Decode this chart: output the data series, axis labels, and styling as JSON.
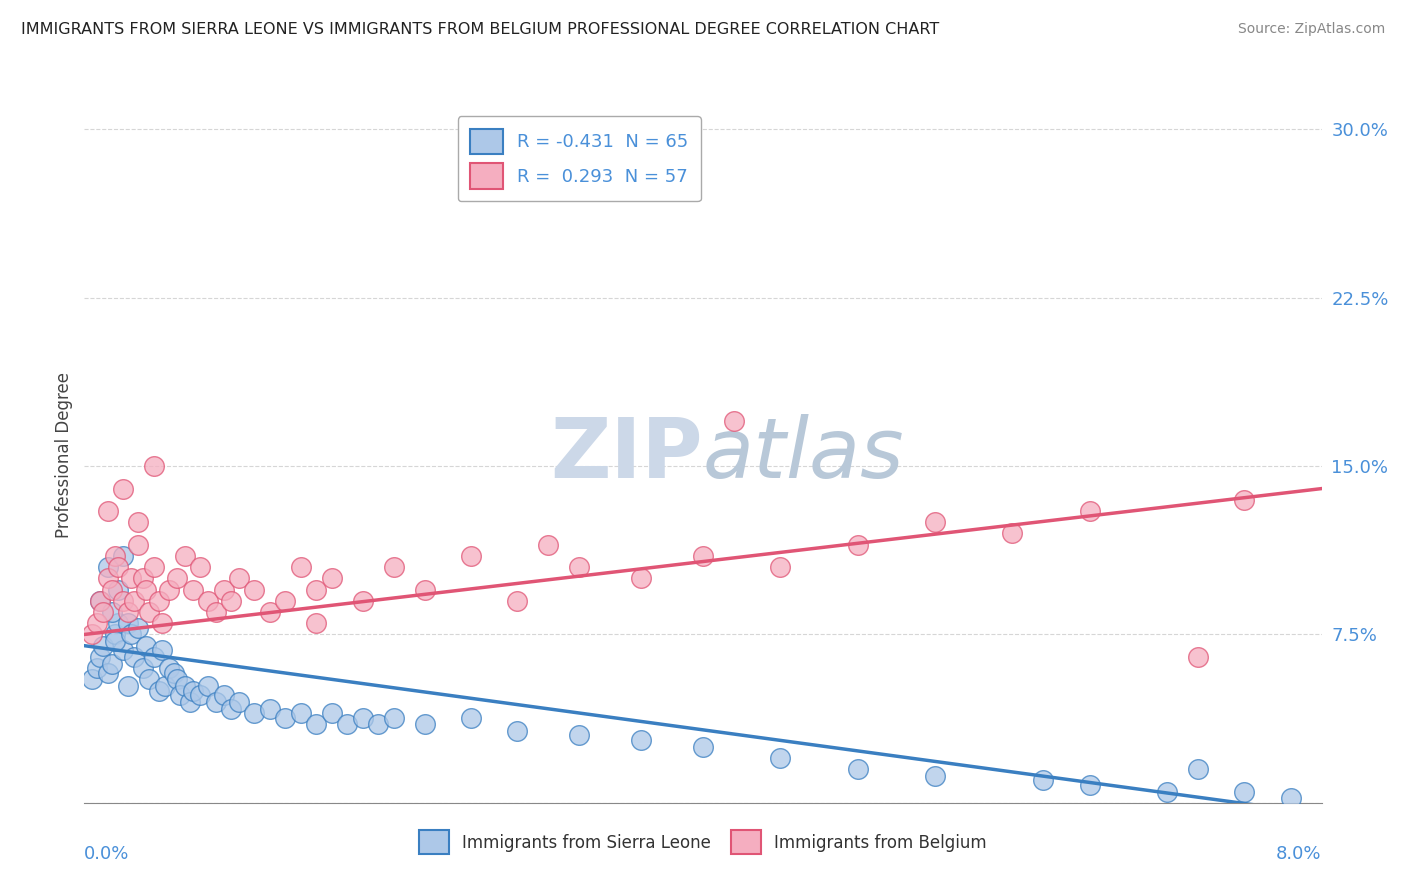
{
  "title": "IMMIGRANTS FROM SIERRA LEONE VS IMMIGRANTS FROM BELGIUM PROFESSIONAL DEGREE CORRELATION CHART",
  "source": "Source: ZipAtlas.com",
  "ylabel": "Professional Degree",
  "xmin": 0.0,
  "xmax": 8.0,
  "ymin": 0.0,
  "ymax": 31.0,
  "yticks": [
    0.0,
    7.5,
    15.0,
    22.5,
    30.0
  ],
  "ytick_labels": [
    "",
    "7.5%",
    "15.0%",
    "22.5%",
    "30.0%"
  ],
  "r_blue": -0.431,
  "n_blue": 65,
  "r_pink": 0.293,
  "n_pink": 57,
  "blue_color": "#adc8e8",
  "pink_color": "#f5aec0",
  "blue_line_color": "#3a7fc1",
  "pink_line_color": "#e05575",
  "legend_label_blue": "Immigrants from Sierra Leone",
  "legend_label_pink": "Immigrants from Belgium",
  "watermark_color": "#ccd8e8",
  "title_color": "#222222",
  "axis_label_color": "#4a90d9",
  "blue_trend_x0": 0.0,
  "blue_trend_y0": 7.0,
  "blue_trend_x1": 8.0,
  "blue_trend_y1": -0.5,
  "pink_trend_x0": 0.0,
  "pink_trend_y0": 7.5,
  "pink_trend_x1": 8.0,
  "pink_trend_y1": 14.0,
  "blue_scatter_x": [
    0.05,
    0.08,
    0.1,
    0.12,
    0.15,
    0.18,
    0.2,
    0.22,
    0.25,
    0.28,
    0.1,
    0.15,
    0.18,
    0.2,
    0.22,
    0.25,
    0.28,
    0.3,
    0.32,
    0.35,
    0.38,
    0.4,
    0.42,
    0.45,
    0.48,
    0.5,
    0.52,
    0.55,
    0.58,
    0.6,
    0.62,
    0.65,
    0.68,
    0.7,
    0.75,
    0.8,
    0.85,
    0.9,
    0.95,
    1.0,
    1.1,
    1.2,
    1.3,
    1.4,
    1.5,
    1.6,
    1.7,
    1.8,
    1.9,
    2.0,
    2.2,
    2.5,
    2.8,
    3.2,
    3.6,
    4.0,
    4.5,
    5.0,
    5.5,
    6.2,
    6.5,
    7.0,
    7.2,
    7.5,
    7.8
  ],
  "blue_scatter_y": [
    5.5,
    6.0,
    6.5,
    7.0,
    5.8,
    6.2,
    7.5,
    8.0,
    6.8,
    5.2,
    9.0,
    10.5,
    8.5,
    7.2,
    9.5,
    11.0,
    8.0,
    7.5,
    6.5,
    7.8,
    6.0,
    7.0,
    5.5,
    6.5,
    5.0,
    6.8,
    5.2,
    6.0,
    5.8,
    5.5,
    4.8,
    5.2,
    4.5,
    5.0,
    4.8,
    5.2,
    4.5,
    4.8,
    4.2,
    4.5,
    4.0,
    4.2,
    3.8,
    4.0,
    3.5,
    4.0,
    3.5,
    3.8,
    3.5,
    3.8,
    3.5,
    3.8,
    3.2,
    3.0,
    2.8,
    2.5,
    2.0,
    1.5,
    1.2,
    1.0,
    0.8,
    0.5,
    1.5,
    0.5,
    0.2
  ],
  "pink_scatter_x": [
    0.05,
    0.08,
    0.1,
    0.12,
    0.15,
    0.18,
    0.2,
    0.22,
    0.25,
    0.28,
    0.3,
    0.32,
    0.35,
    0.38,
    0.4,
    0.42,
    0.45,
    0.48,
    0.5,
    0.55,
    0.6,
    0.65,
    0.7,
    0.75,
    0.8,
    0.85,
    0.9,
    0.95,
    1.0,
    1.1,
    1.2,
    1.3,
    1.4,
    1.5,
    1.6,
    1.8,
    2.0,
    2.2,
    2.5,
    2.8,
    3.0,
    3.2,
    3.6,
    4.0,
    4.5,
    5.0,
    5.5,
    6.0,
    6.5,
    7.2,
    0.15,
    0.25,
    0.35,
    0.45,
    1.5,
    4.2,
    7.5
  ],
  "pink_scatter_y": [
    7.5,
    8.0,
    9.0,
    8.5,
    10.0,
    9.5,
    11.0,
    10.5,
    9.0,
    8.5,
    10.0,
    9.0,
    11.5,
    10.0,
    9.5,
    8.5,
    10.5,
    9.0,
    8.0,
    9.5,
    10.0,
    11.0,
    9.5,
    10.5,
    9.0,
    8.5,
    9.5,
    9.0,
    10.0,
    9.5,
    8.5,
    9.0,
    10.5,
    9.5,
    10.0,
    9.0,
    10.5,
    9.5,
    11.0,
    9.0,
    11.5,
    10.5,
    10.0,
    11.0,
    10.5,
    11.5,
    12.5,
    12.0,
    13.0,
    6.5,
    13.0,
    14.0,
    12.5,
    15.0,
    8.0,
    17.0,
    13.5
  ]
}
